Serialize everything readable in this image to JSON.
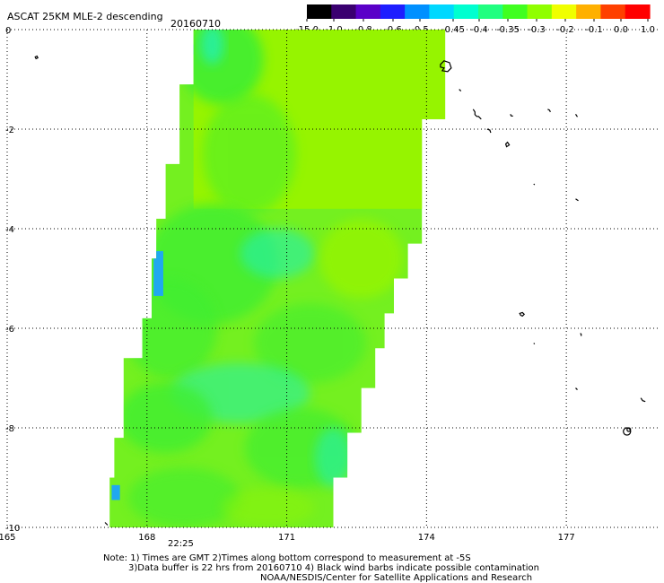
{
  "header": {
    "title": "ASCAT 25KM MLE-2 descending",
    "date": "20160710"
  },
  "colorbar": {
    "labels": [
      "-15.0",
      "-1.0",
      "-0.8",
      "-0.6",
      "-0.5",
      "-0.45",
      "-0.4",
      "-0.35",
      "-0.3",
      "-0.2",
      "-0.1",
      "0.0",
      "1.0"
    ],
    "colors": [
      "#000000",
      "#3a0070",
      "#5a00c8",
      "#1e1eff",
      "#0090ff",
      "#00d8ff",
      "#00ffd0",
      "#20ff80",
      "#40ff20",
      "#90ff00",
      "#f0ff00",
      "#ffb000",
      "#ff4000",
      "#ff0000"
    ]
  },
  "axes": {
    "x_ticks": [
      "165",
      "168",
      "171",
      "174",
      "177"
    ],
    "y_ticks": [
      "0",
      "-2",
      "-4",
      "-6",
      "-8",
      "-10"
    ]
  },
  "map": {
    "lon_range": [
      165,
      179
    ],
    "lat_range": [
      -10,
      0
    ],
    "swath_time": "22:25",
    "swath_time_color": "#c03000",
    "swath_colors": {
      "base": "#74f020",
      "top": "#96f400",
      "patch": "#40ee30",
      "cyan": "#20f0b0",
      "blue": "#20a8f0"
    }
  },
  "footer": {
    "note_line1": "Note: 1) Times are GMT 2)Times along bottom correspond to measurement at -5S",
    "note_line2": "3)Data buffer is 22 hrs from 20160710 4) Black wind barbs indicate possible contamination",
    "credit": "NOAA/NESDIS/Center for Satellite Applications and Research"
  }
}
